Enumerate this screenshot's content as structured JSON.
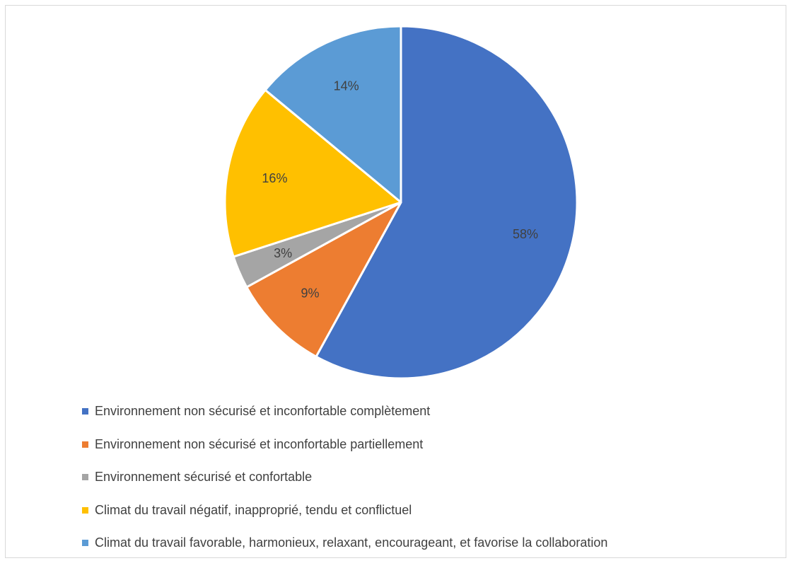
{
  "chart_data": {
    "type": "pie",
    "categories": [
      "Environnement non sécurisé et inconfortable complètement",
      "Environnement non sécurisé et inconfortable partiellement",
      "Environnement sécurisé et confortable",
      "Climat du travail négatif, inapproprié, tendu et conflictuel",
      "Climat du travail favorable, harmonieux, relaxant, encourageant, et favorise la collaboration"
    ],
    "values": [
      58,
      9,
      3,
      16,
      14
    ],
    "data_labels": [
      "58%",
      "9%",
      "3%",
      "16%",
      "14%"
    ],
    "colors": [
      "#4472C4",
      "#ED7D31",
      "#A5A5A5",
      "#FFC000",
      "#5B9BD5"
    ],
    "legend_position": "bottom-left",
    "start_angle": "top",
    "direction": "clockwise",
    "title": ""
  }
}
